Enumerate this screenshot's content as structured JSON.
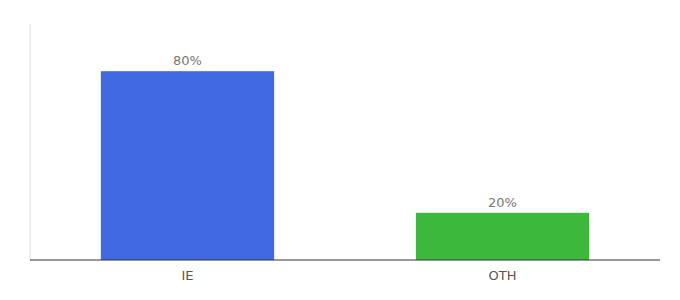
{
  "chart_data": {
    "type": "bar",
    "categories": [
      "IE",
      "OTH"
    ],
    "values": [
      80,
      20
    ],
    "value_labels": [
      "80%",
      "20%"
    ],
    "colors": [
      "#4169e1",
      "#3cb83c"
    ],
    "ylim": [
      0,
      100
    ],
    "data_labels": true,
    "tick_labels": "x",
    "grid": false
  }
}
